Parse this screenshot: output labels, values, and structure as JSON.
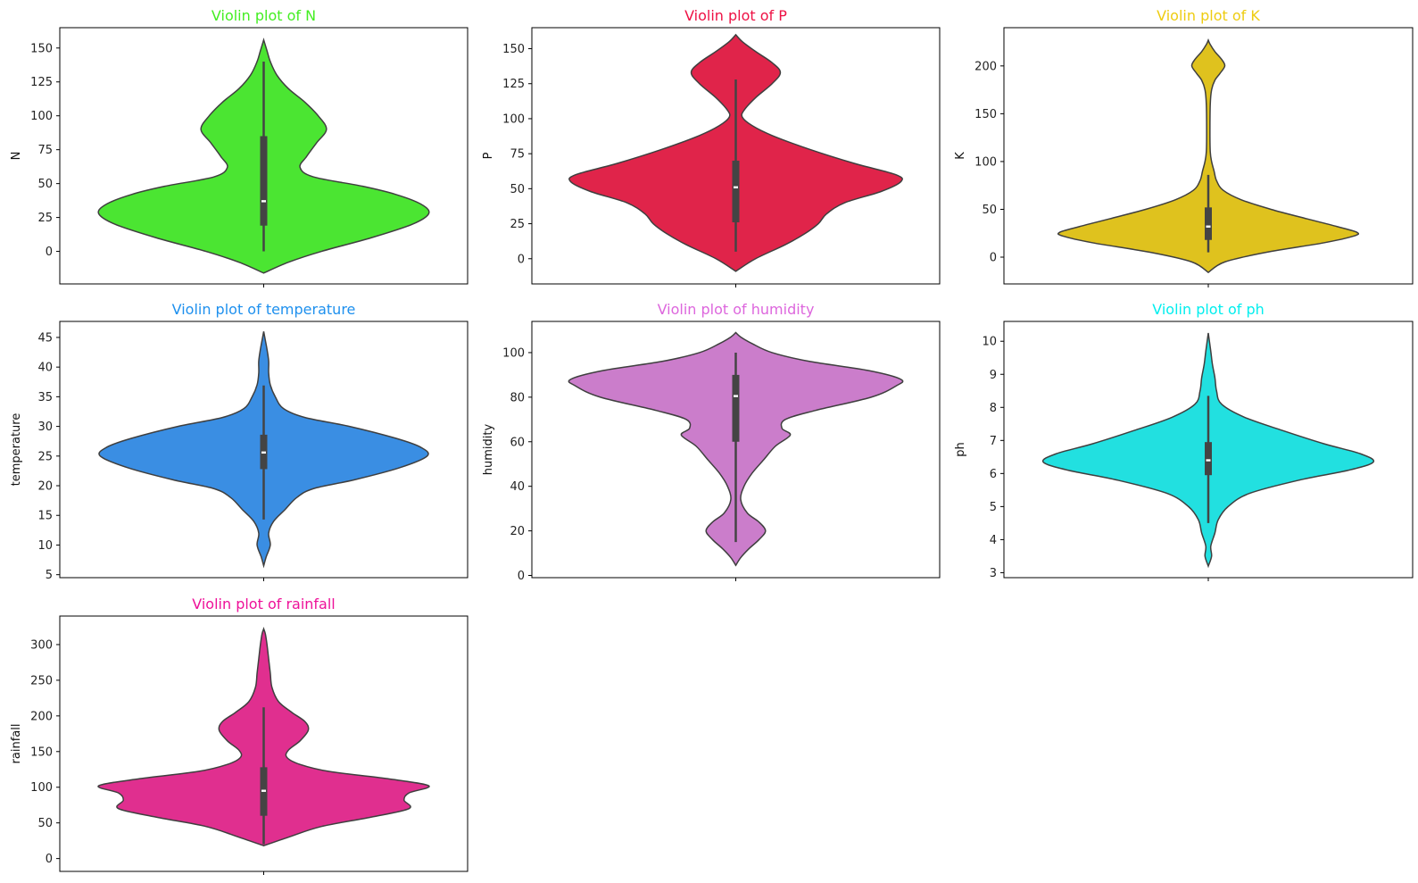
{
  "figure": {
    "title_prefix": "Violin plot of"
  },
  "chart_data": [
    {
      "type": "violin",
      "title": "Violin plot of N",
      "ylabel": "N",
      "color": "#4be532",
      "title_color": "#44ee22",
      "ylim": [
        -24,
        165
      ],
      "yticks": [
        0,
        25,
        50,
        75,
        100,
        125,
        150
      ],
      "ytick_labels": [
        "0",
        "25",
        "50",
        "75",
        "100",
        "125",
        "150"
      ],
      "density": [
        [
          -16,
          0
        ],
        [
          -8,
          0.15
        ],
        [
          0,
          0.35
        ],
        [
          10,
          0.65
        ],
        [
          20,
          0.9
        ],
        [
          28,
          1.0
        ],
        [
          35,
          0.95
        ],
        [
          42,
          0.8
        ],
        [
          48,
          0.6
        ],
        [
          55,
          0.3
        ],
        [
          62,
          0.22
        ],
        [
          70,
          0.26
        ],
        [
          80,
          0.32
        ],
        [
          90,
          0.38
        ],
        [
          100,
          0.33
        ],
        [
          110,
          0.25
        ],
        [
          120,
          0.15
        ],
        [
          130,
          0.08
        ],
        [
          140,
          0.04
        ],
        [
          148,
          0.02
        ],
        [
          156,
          0
        ]
      ],
      "box": {
        "min": 0,
        "q1": 19,
        "median": 37,
        "q3": 85,
        "max": 140
      }
    },
    {
      "type": "violin",
      "title": "Violin plot of P",
      "ylabel": "P",
      "color": "#e0244a",
      "title_color": "#ee1144",
      "ylim": [
        -18,
        165
      ],
      "yticks": [
        0,
        25,
        50,
        75,
        100,
        125,
        150
      ],
      "ytick_labels": [
        "0",
        "25",
        "50",
        "75",
        "100",
        "125",
        "150"
      ],
      "density": [
        [
          -9,
          0
        ],
        [
          0,
          0.12
        ],
        [
          10,
          0.3
        ],
        [
          18,
          0.42
        ],
        [
          25,
          0.5
        ],
        [
          32,
          0.55
        ],
        [
          40,
          0.66
        ],
        [
          48,
          0.88
        ],
        [
          55,
          1.0
        ],
        [
          60,
          0.97
        ],
        [
          68,
          0.72
        ],
        [
          78,
          0.45
        ],
        [
          88,
          0.22
        ],
        [
          95,
          0.1
        ],
        [
          101,
          0.04
        ],
        [
          106,
          0.05
        ],
        [
          115,
          0.12
        ],
        [
          125,
          0.22
        ],
        [
          133,
          0.27
        ],
        [
          140,
          0.22
        ],
        [
          148,
          0.12
        ],
        [
          155,
          0.04
        ],
        [
          160,
          0
        ]
      ],
      "box": {
        "min": 5,
        "q1": 26,
        "median": 51,
        "q3": 70,
        "max": 128
      }
    },
    {
      "type": "violin",
      "title": "Violin plot of K",
      "ylabel": "K",
      "color": "#dfc21e",
      "title_color": "#eecc11",
      "ylim": [
        -28,
        240
      ],
      "yticks": [
        0,
        50,
        100,
        150,
        200
      ],
      "ytick_labels": [
        "0",
        "50",
        "100",
        "150",
        "200"
      ],
      "density": [
        [
          -16,
          0
        ],
        [
          -5,
          0.1
        ],
        [
          5,
          0.35
        ],
        [
          15,
          0.7
        ],
        [
          22,
          0.88
        ],
        [
          26,
          0.9
        ],
        [
          32,
          0.78
        ],
        [
          40,
          0.6
        ],
        [
          50,
          0.38
        ],
        [
          60,
          0.2
        ],
        [
          70,
          0.09
        ],
        [
          80,
          0.05
        ],
        [
          90,
          0.035
        ],
        [
          100,
          0.02
        ],
        [
          110,
          0.012
        ],
        [
          130,
          0.01
        ],
        [
          160,
          0.012
        ],
        [
          175,
          0.02
        ],
        [
          185,
          0.04
        ],
        [
          192,
          0.07
        ],
        [
          200,
          0.1
        ],
        [
          207,
          0.08
        ],
        [
          215,
          0.04
        ],
        [
          223,
          0.01
        ],
        [
          227,
          0
        ]
      ],
      "box": {
        "min": 5,
        "q1": 18,
        "median": 32,
        "q3": 52,
        "max": 86
      }
    },
    {
      "type": "violin",
      "title": "Violin plot of temperature",
      "ylabel": "temperature",
      "color": "#3a8ee3",
      "title_color": "#1e90ee",
      "ylim": [
        4.5,
        47.7
      ],
      "yticks": [
        5,
        10,
        15,
        20,
        25,
        30,
        35,
        40,
        45
      ],
      "ytick_labels": [
        "5",
        "10",
        "15",
        "20",
        "25",
        "30",
        "35",
        "40",
        "45"
      ],
      "density": [
        [
          6.5,
          0
        ],
        [
          8,
          0.015
        ],
        [
          10,
          0.04
        ],
        [
          12,
          0.03
        ],
        [
          14,
          0.06
        ],
        [
          16,
          0.13
        ],
        [
          18,
          0.2
        ],
        [
          19.5,
          0.3
        ],
        [
          21,
          0.55
        ],
        [
          23,
          0.82
        ],
        [
          25,
          0.99
        ],
        [
          26.5,
          0.95
        ],
        [
          28,
          0.8
        ],
        [
          30,
          0.52
        ],
        [
          31.5,
          0.25
        ],
        [
          33,
          0.12
        ],
        [
          35,
          0.07
        ],
        [
          37,
          0.04
        ],
        [
          39,
          0.03
        ],
        [
          41,
          0.03
        ],
        [
          43,
          0.02
        ],
        [
          44.5,
          0.01
        ],
        [
          46,
          0
        ]
      ],
      "box": {
        "min": 14.3,
        "q1": 22.8,
        "median": 25.6,
        "q3": 28.6,
        "max": 36.9
      }
    },
    {
      "type": "violin",
      "title": "Violin plot of humidity",
      "ylabel": "humidity",
      "color": "#cb7dcb",
      "title_color": "#dd66dd",
      "ylim": [
        -1,
        114
      ],
      "yticks": [
        0,
        20,
        40,
        60,
        80,
        100
      ],
      "ytick_labels": [
        "0",
        "20",
        "40",
        "60",
        "80",
        "100"
      ],
      "density": [
        [
          4.5,
          0
        ],
        [
          8,
          0.03
        ],
        [
          12,
          0.08
        ],
        [
          16,
          0.14
        ],
        [
          20,
          0.18
        ],
        [
          24,
          0.14
        ],
        [
          28,
          0.07
        ],
        [
          34,
          0.03
        ],
        [
          40,
          0.05
        ],
        [
          46,
          0.1
        ],
        [
          52,
          0.17
        ],
        [
          58,
          0.24
        ],
        [
          63,
          0.33
        ],
        [
          66,
          0.28
        ],
        [
          70,
          0.3
        ],
        [
          74,
          0.48
        ],
        [
          80,
          0.82
        ],
        [
          85,
          0.97
        ],
        [
          88,
          1.0
        ],
        [
          92,
          0.8
        ],
        [
          96,
          0.45
        ],
        [
          100,
          0.22
        ],
        [
          104,
          0.1
        ],
        [
          107,
          0.03
        ],
        [
          109,
          0
        ]
      ],
      "box": {
        "min": 15,
        "q1": 60,
        "median": 80.5,
        "q3": 90,
        "max": 100
      }
    },
    {
      "type": "violin",
      "title": "Violin plot of ph",
      "ylabel": "ph",
      "color": "#22e0e0",
      "title_color": "#00eeee",
      "ylim": [
        2.85,
        10.6
      ],
      "yticks": [
        3,
        4,
        5,
        6,
        7,
        8,
        9,
        10
      ],
      "ytick_labels": [
        "3",
        "4",
        "5",
        "6",
        "7",
        "8",
        "9",
        "10"
      ],
      "density": [
        [
          3.2,
          0
        ],
        [
          3.5,
          0.02
        ],
        [
          3.8,
          0.015
        ],
        [
          4.2,
          0.04
        ],
        [
          4.6,
          0.06
        ],
        [
          5.0,
          0.12
        ],
        [
          5.4,
          0.25
        ],
        [
          5.8,
          0.55
        ],
        [
          6.1,
          0.85
        ],
        [
          6.35,
          1.0
        ],
        [
          6.6,
          0.92
        ],
        [
          6.9,
          0.7
        ],
        [
          7.3,
          0.45
        ],
        [
          7.7,
          0.22
        ],
        [
          8.1,
          0.08
        ],
        [
          8.5,
          0.05
        ],
        [
          8.9,
          0.04
        ],
        [
          9.3,
          0.025
        ],
        [
          9.7,
          0.015
        ],
        [
          10.25,
          0
        ]
      ],
      "box": {
        "min": 4.5,
        "q1": 5.95,
        "median": 6.4,
        "q3": 6.95,
        "max": 8.35
      }
    },
    {
      "type": "violin",
      "title": "Violin plot of rainfall",
      "ylabel": "rainfall",
      "color": "#e02f8f",
      "title_color": "#ee1199",
      "ylim": [
        -18,
        340
      ],
      "yticks": [
        0,
        50,
        100,
        150,
        200,
        250,
        300
      ],
      "ytick_labels": [
        "0",
        "50",
        "100",
        "150",
        "200",
        "250",
        "300"
      ],
      "density": [
        [
          18,
          0
        ],
        [
          30,
          0.15
        ],
        [
          45,
          0.35
        ],
        [
          58,
          0.65
        ],
        [
          70,
          0.88
        ],
        [
          82,
          0.85
        ],
        [
          92,
          0.88
        ],
        [
          102,
          1.0
        ],
        [
          112,
          0.75
        ],
        [
          122,
          0.4
        ],
        [
          132,
          0.22
        ],
        [
          142,
          0.14
        ],
        [
          152,
          0.15
        ],
        [
          165,
          0.22
        ],
        [
          180,
          0.27
        ],
        [
          192,
          0.25
        ],
        [
          205,
          0.17
        ],
        [
          220,
          0.09
        ],
        [
          240,
          0.05
        ],
        [
          260,
          0.04
        ],
        [
          280,
          0.03
        ],
        [
          300,
          0.02
        ],
        [
          315,
          0.01
        ],
        [
          322,
          0
        ]
      ],
      "box": {
        "min": 20,
        "q1": 60,
        "median": 95,
        "q3": 128,
        "max": 212
      }
    }
  ]
}
